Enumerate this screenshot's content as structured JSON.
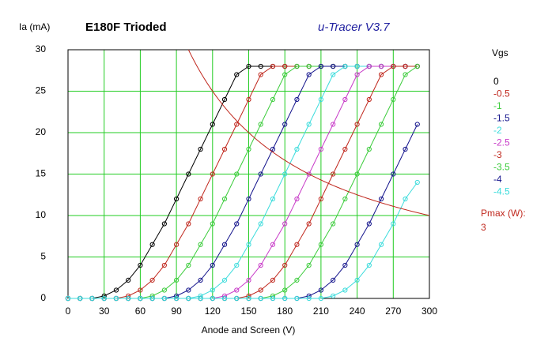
{
  "chart_data": {
    "type": "line",
    "title": "E180F Trioded",
    "subtitle": "u-Tracer V3.7",
    "y_label": "Ia (mA)",
    "x_label": "Anode and Screen (V)",
    "legend_title": "Vgs",
    "x": [
      0,
      10,
      20,
      30,
      40,
      50,
      60,
      70,
      80,
      90,
      100,
      110,
      120,
      130,
      140,
      150,
      160,
      170,
      180,
      190,
      200,
      210,
      220,
      230,
      240,
      250,
      260,
      270,
      280,
      290
    ],
    "series": [
      {
        "name": "0",
        "color": "#000000",
        "values": [
          0,
          0,
          0,
          0.3,
          1,
          2.2,
          4,
          6.5,
          9,
          12,
          15,
          18,
          21,
          24,
          27,
          28,
          28,
          28,
          28,
          28,
          28,
          28,
          28,
          28,
          28,
          28,
          28,
          28,
          28,
          28
        ]
      },
      {
        "name": "-0.5",
        "color": "#c0281e",
        "values": [
          0,
          0,
          0,
          0,
          0,
          0.3,
          1,
          2.2,
          4,
          6.5,
          9,
          12,
          15,
          18,
          21,
          24,
          27,
          28,
          28,
          28,
          28,
          28,
          28,
          28,
          28,
          28,
          28,
          28,
          28,
          28
        ]
      },
      {
        "name": "-1",
        "color": "#3ccc3c",
        "values": [
          0,
          0,
          0,
          0,
          0,
          0,
          0,
          0.3,
          1,
          2.2,
          4,
          6.5,
          9,
          12,
          15,
          18,
          21,
          24,
          27,
          28,
          28,
          28,
          28,
          28,
          28,
          28,
          28,
          28,
          28,
          28
        ]
      },
      {
        "name": "-1.5",
        "color": "#14148c",
        "values": [
          0,
          0,
          0,
          0,
          0,
          0,
          0,
          0,
          0,
          0.3,
          1,
          2.2,
          4,
          6.5,
          9,
          12,
          15,
          18,
          21,
          24,
          27,
          28,
          28,
          28,
          28,
          28,
          28,
          28,
          28,
          28
        ]
      },
      {
        "name": "-2",
        "color": "#3cdcdc",
        "values": [
          0,
          0,
          0,
          0,
          0,
          0,
          0,
          0,
          0,
          0,
          0,
          0.3,
          1,
          2.2,
          4,
          6.5,
          9,
          12,
          15,
          18,
          21,
          24,
          27,
          28,
          28,
          28,
          28,
          28,
          28,
          28
        ]
      },
      {
        "name": "-2.5",
        "color": "#c83cc8",
        "values": [
          0,
          0,
          0,
          0,
          0,
          0,
          0,
          0,
          0,
          0,
          0,
          0,
          0,
          0.3,
          1,
          2.2,
          4,
          6.5,
          9,
          12,
          15,
          18,
          21,
          24,
          27,
          28,
          28,
          28,
          28,
          28
        ]
      },
      {
        "name": "-3",
        "color": "#c0281e",
        "values": [
          0,
          0,
          0,
          0,
          0,
          0,
          0,
          0,
          0,
          0,
          0,
          0,
          0,
          0,
          0,
          0.3,
          1,
          2.2,
          4,
          6.5,
          9,
          12,
          15,
          18,
          21,
          24,
          27,
          28,
          28,
          28
        ]
      },
      {
        "name": "-3.5",
        "color": "#3ccc3c",
        "values": [
          0,
          0,
          0,
          0,
          0,
          0,
          0,
          0,
          0,
          0,
          0,
          0,
          0,
          0,
          0,
          0,
          0,
          0.3,
          1,
          2.2,
          4,
          6.5,
          9,
          12,
          15,
          18,
          21,
          24,
          27,
          28
        ]
      },
      {
        "name": "-4",
        "color": "#14148c",
        "values": [
          0,
          0,
          0,
          0,
          0,
          0,
          0,
          0,
          0,
          0,
          0,
          0,
          0,
          0,
          0,
          0,
          0,
          0,
          0,
          0,
          0.3,
          1,
          2.2,
          4,
          6.5,
          9,
          12,
          15,
          18,
          21
        ]
      },
      {
        "name": "-4.5",
        "color": "#3cdcdc",
        "values": [
          0,
          0,
          0,
          0,
          0,
          0,
          0,
          0,
          0,
          0,
          0,
          0,
          0,
          0,
          0,
          0,
          0,
          0,
          0,
          0,
          0,
          0,
          0.3,
          1,
          2.2,
          4,
          6.5,
          9,
          12,
          14
        ]
      }
    ],
    "pmax": {
      "label": "Pmax (W):",
      "value": 3,
      "color": "#c0281e"
    },
    "xlim": [
      0,
      300
    ],
    "xticks": [
      0,
      30,
      60,
      90,
      120,
      150,
      180,
      210,
      240,
      270,
      300
    ],
    "ylim": [
      0,
      30
    ],
    "yticks": [
      0,
      5,
      10,
      15,
      20,
      25,
      30
    ],
    "grid": true,
    "grid_color": "#22cc22"
  }
}
